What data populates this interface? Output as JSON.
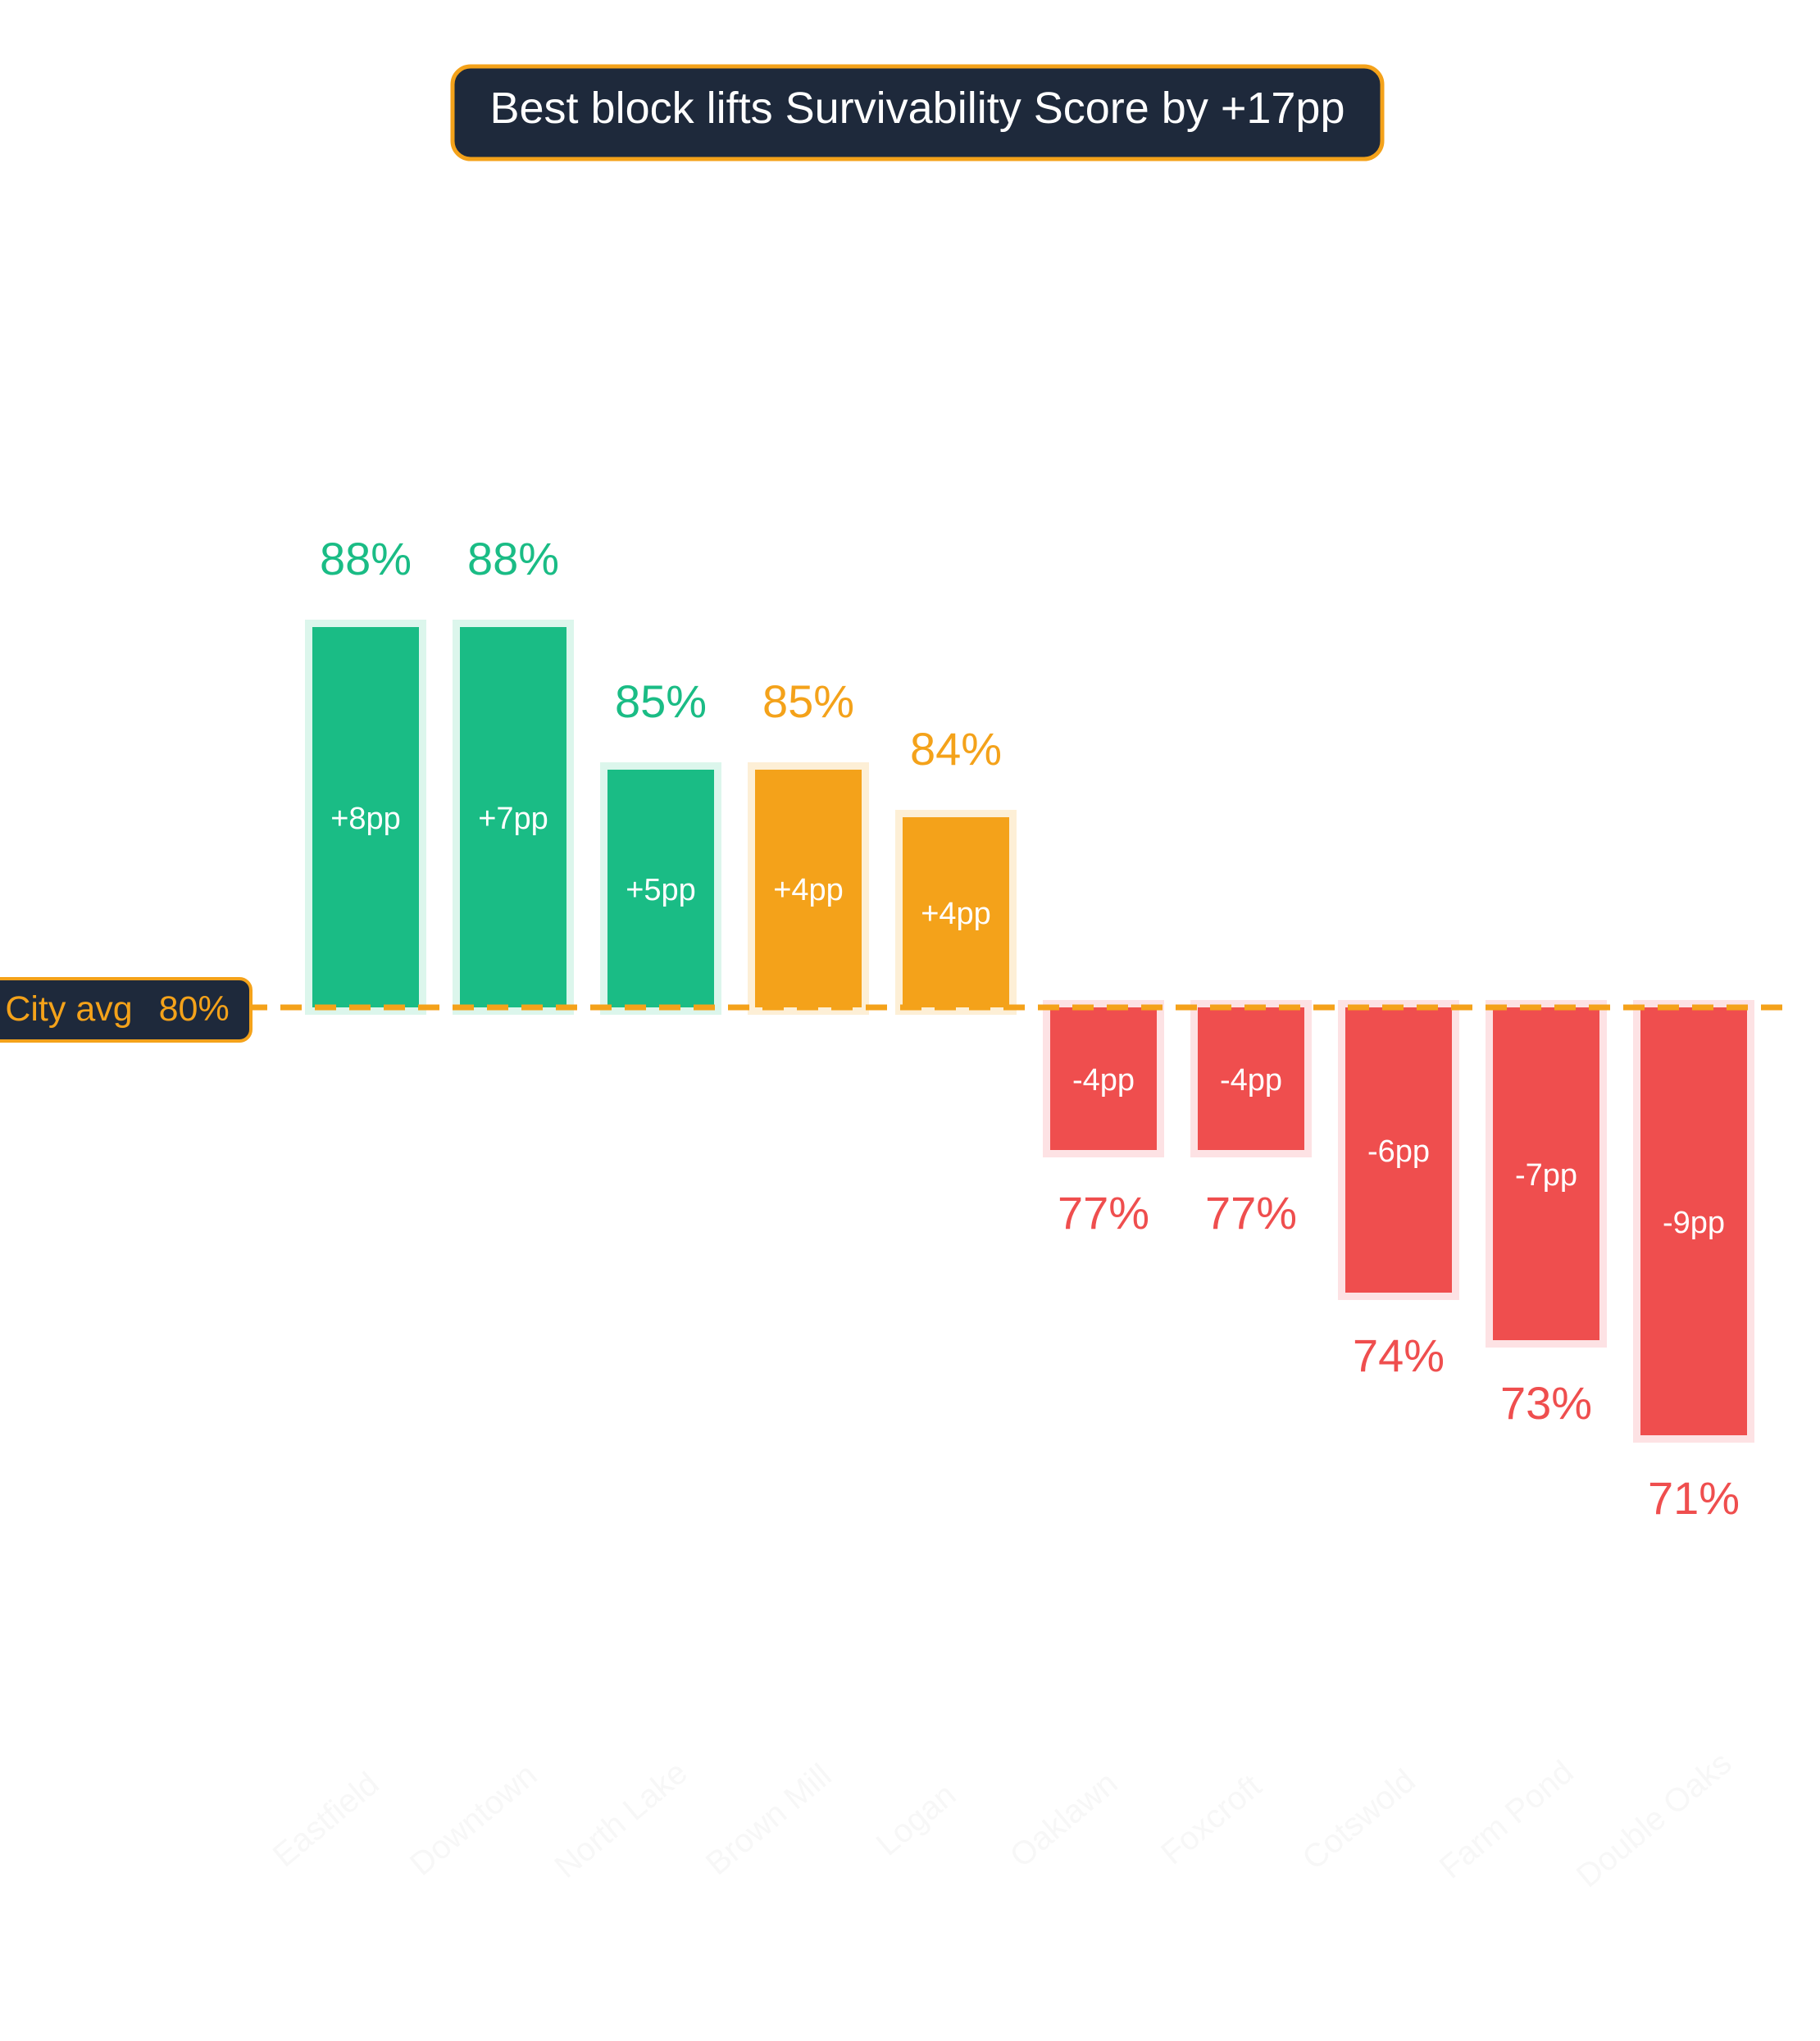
{
  "chart_data": {
    "type": "bar",
    "title": "Best block lifts Survivability Score by +17pp",
    "xlabel": "",
    "ylabel": "",
    "ylim": [
      60,
      100
    ],
    "grid": false,
    "baseline": {
      "label": "City avg",
      "value_label": "80%",
      "value": 80
    },
    "categories": [
      "Eastfield",
      "Downtown",
      "North Lake",
      "Brown Mill",
      "Logan",
      "Oaklawn",
      "Foxcroft",
      "Cotswold",
      "Farm Pond",
      "Double Oaks"
    ],
    "values": [
      88,
      88,
      85,
      85,
      84,
      77,
      77,
      74,
      73,
      71
    ],
    "value_labels": [
      "88%",
      "88%",
      "85%",
      "85%",
      "84%",
      "77%",
      "77%",
      "74%",
      "73%",
      "71%"
    ],
    "delta_labels": [
      "+8pp",
      "+7pp",
      "+5pp",
      "+4pp",
      "+4pp",
      "-4pp",
      "-4pp",
      "-6pp",
      "-7pp",
      "-9pp"
    ],
    "bar_colors": [
      "#1abc85",
      "#1abc85",
      "#1abc85",
      "#f4a21a",
      "#f4a21a",
      "#ef4e4e",
      "#ef4e4e",
      "#ef4e4e",
      "#ef4e4e",
      "#ef4e4e"
    ],
    "halo_colors": [
      "#dcf6ec",
      "#dcf6ec",
      "#dcf6ec",
      "#fdefd6",
      "#fdefd6",
      "#fde2e4",
      "#fde2e4",
      "#fde2e4",
      "#fde2e4",
      "#fde2e4"
    ],
    "colors": {
      "title_bg": "#1e293b",
      "title_border": "#f4a21a",
      "title_text": "#ffffff",
      "avg_line": "#f4a21a",
      "category_text": "#f7f7f7"
    }
  }
}
